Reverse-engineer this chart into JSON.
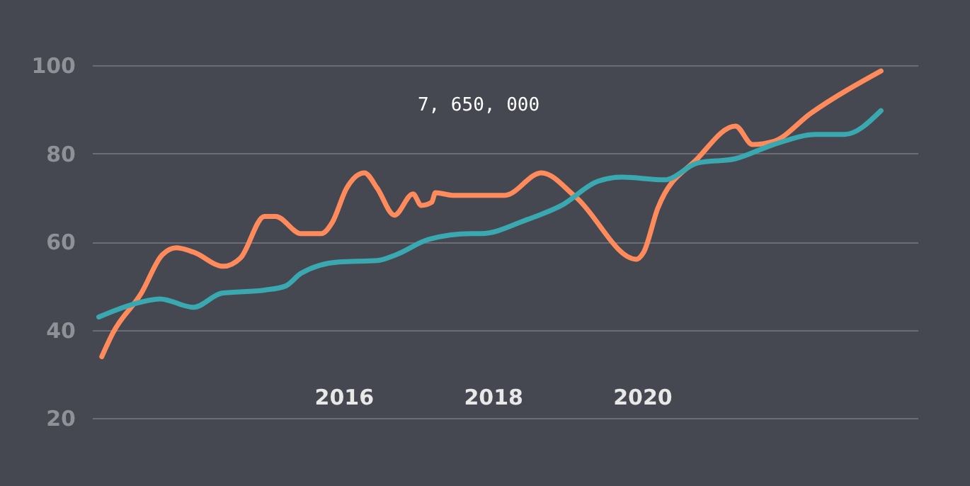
{
  "chart_data": {
    "type": "line",
    "xlim": [
      2012.63,
      2023.69
    ],
    "xticks": [
      2016,
      2018,
      2020
    ],
    "ylim": [
      20,
      100
    ],
    "yticks": [
      20,
      40,
      60,
      80,
      100
    ],
    "grid": "y",
    "marker": "none",
    "line_style": "solid",
    "annotations": [
      "7, 650, 000"
    ],
    "series": [
      {
        "color": "#ff8a5c",
        "x": [
          2012.76,
          2012.91,
          2013.29,
          2013.57,
          2013.76,
          2013.99,
          2014.39,
          2014.62,
          2014.94,
          2015.09,
          2015.43,
          2015.7,
          2015.85,
          2016.04,
          2016.28,
          2016.45,
          2016.68,
          2016.93,
          2017.04,
          2017.18,
          2017.23,
          2017.46,
          2017.93,
          2018.16,
          2018.65,
          2019.11,
          2019.92,
          2020.02,
          2020.21,
          2020.74,
          2021.25,
          2021.48,
          2021.76,
          2022.26,
          2023.2
        ],
        "values": [
          33.9,
          39.3,
          48.3,
          57.0,
          58.6,
          57.6,
          54.4,
          56.3,
          65.7,
          65.7,
          61.8,
          61.8,
          64.4,
          72.1,
          75.6,
          72.1,
          66.0,
          70.8,
          68.2,
          68.9,
          71.1,
          70.5,
          70.5,
          70.5,
          75.6,
          70.1,
          56.0,
          57.6,
          67.6,
          78.8,
          86.2,
          82.0,
          82.7,
          89.1,
          98.7
        ]
      },
      {
        "color": "#3aa8b0",
        "x": [
          2012.72,
          2013.16,
          2013.54,
          2013.99,
          2014.37,
          2014.94,
          2015.22,
          2015.43,
          2015.94,
          2016.45,
          2016.7,
          2017.14,
          2017.71,
          2017.84,
          2018.46,
          2018.92,
          2019.41,
          2019.73,
          2020.3,
          2020.74,
          2021.25,
          2021.76,
          2022.33,
          2022.71,
          2023.2
        ],
        "values": [
          42.9,
          45.7,
          47.0,
          45.1,
          48.3,
          49.0,
          49.9,
          52.8,
          55.4,
          55.7,
          57.0,
          60.5,
          61.8,
          61.8,
          65.0,
          68.2,
          73.7,
          74.6,
          74.0,
          77.8,
          78.8,
          82.0,
          84.3,
          84.3,
          89.7
        ]
      }
    ]
  }
}
